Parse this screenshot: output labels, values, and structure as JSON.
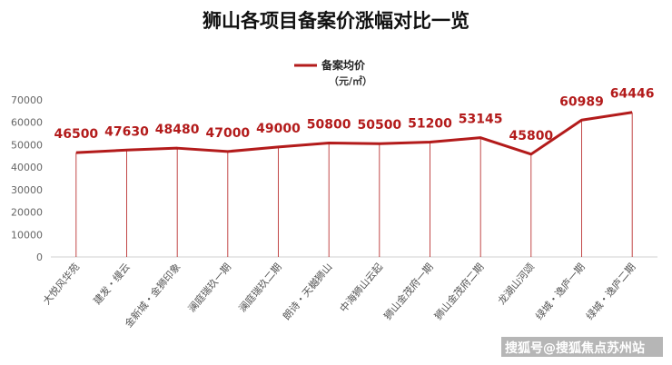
{
  "watermark": "搜狐号@搜狐焦点苏州站",
  "colors": {
    "line": "#b31b1b",
    "drop": "#b31b1b",
    "axis": "#d0d0d0",
    "label": "#b31b1b"
  },
  "chart_data": {
    "type": "line",
    "title": "狮山各项目备案价涨幅对比一览",
    "legend": {
      "position": "top",
      "label": "备案均价",
      "unit": "（元/㎡）"
    },
    "categories": [
      "大悦风华苑",
      "建发・缦云",
      "金新城・金狮印象",
      "澜庭瑞玖一期",
      "澜庭瑞玖二期",
      "朗诗・天樾狮山",
      "中海狮山云起",
      "狮山金茂府一期",
      "狮山金茂府二期",
      "龙湖山河颂",
      "绿城・逸庐一期",
      "绿城・逸庐二期"
    ],
    "series": [
      {
        "name": "备案均价",
        "values": [
          46500,
          47630,
          48480,
          47000,
          49000,
          50800,
          50500,
          51200,
          53145,
          45800,
          60989,
          64446
        ]
      }
    ],
    "ylim": [
      0,
      70000
    ],
    "yticks": [
      "0",
      "10000",
      "20000",
      "30000",
      "40000",
      "50000",
      "60000",
      "70000"
    ],
    "grid": false
  }
}
